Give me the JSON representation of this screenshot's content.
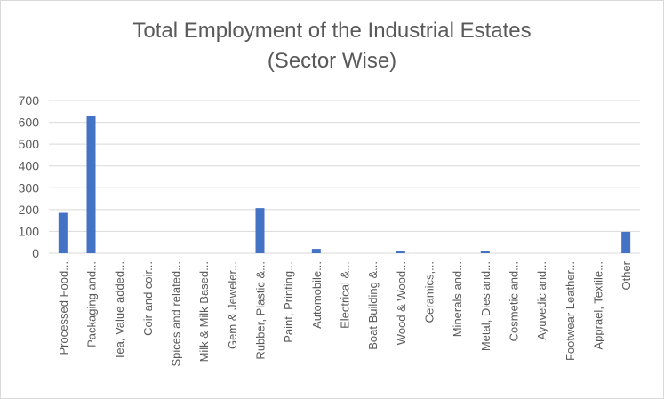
{
  "chart_data": {
    "type": "bar",
    "title": "Total Employment of the Industrial Estates",
    "subtitle": "(Sector Wise)",
    "categories": [
      "Processed Food...",
      "Packaging and...",
      "Tea, Value added...",
      "Coir and coir...",
      "Spices and related...",
      "Milk & Milk Based...",
      "Gem & Jeweler...",
      "Rubber, Plastic &...",
      "Paint, Printing...",
      "Automobile...",
      "Electrical &...",
      "Boat Building &...",
      "Wood & Wood...",
      "Ceramics,...",
      "Minerals and...",
      "Metal, Dies and...",
      "Cosmetic and...",
      "Ayuvedic and...",
      "Footwear Leather...",
      "Apprael, Textile...",
      "Other"
    ],
    "values": [
      185,
      630,
      0,
      0,
      0,
      0,
      0,
      207,
      0,
      20,
      0,
      0,
      10,
      0,
      0,
      10,
      0,
      0,
      0,
      0,
      98
    ],
    "yticks": [
      0,
      100,
      200,
      300,
      400,
      500,
      600,
      700
    ],
    "ylim": [
      0,
      700
    ],
    "grid": true,
    "legend": "none",
    "bar_color": "#4472c4",
    "grid_color": "#d9d9d9",
    "text_color": "#595959"
  }
}
